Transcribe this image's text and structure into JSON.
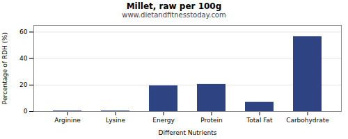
{
  "chart_data": {
    "type": "bar",
    "title": "Millet, raw per 100g",
    "subtitle": "www.dietandfitnesstoday.com",
    "xlabel": "Different Nutrients",
    "ylabel": "Percentage of RDH (%)",
    "categories": [
      "Arginine",
      "Lysine",
      "Energy",
      "Protein",
      "Total Fat",
      "Carbohydrate"
    ],
    "values": [
      0.5,
      0.5,
      19.5,
      20.5,
      7.0,
      56.5
    ],
    "color": "#2e4482",
    "ylim": [
      0,
      65
    ],
    "yticks": [
      0,
      20,
      40,
      60
    ],
    "grid": true
  }
}
